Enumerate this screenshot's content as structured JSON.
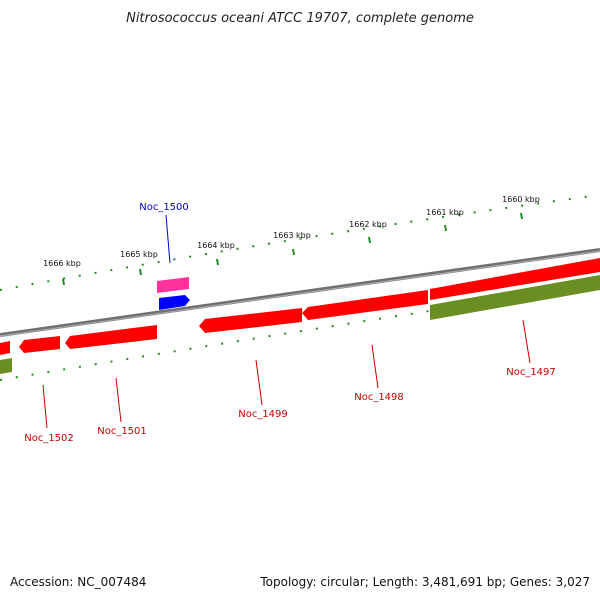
{
  "title": "Nitrosococcus oceani ATCC 19707, complete genome",
  "footer": {
    "accession": "Accession: NC_007484",
    "summary": "Topology: circular; Length: 3,481,691 bp; Genes: 3,027"
  },
  "kbp_labels": [
    "1666 kbp",
    "1665 kbp",
    "1664 kbp",
    "1663 kbp",
    "1662 kbp",
    "1661 kbp",
    "1660 kbp"
  ],
  "genes": [
    {
      "name": "Noc_1500",
      "strand": "forward",
      "color": "#0000cc"
    },
    {
      "name": "Noc_1502",
      "strand": "reverse",
      "color": "#cc0000"
    },
    {
      "name": "Noc_1501",
      "strand": "reverse",
      "color": "#cc0000"
    },
    {
      "name": "Noc_1499",
      "strand": "reverse",
      "color": "#cc0000"
    },
    {
      "name": "Noc_1498",
      "strand": "reverse",
      "color": "#cc0000"
    },
    {
      "name": "Noc_1497",
      "strand": "reverse",
      "color": "#cc0000"
    }
  ],
  "colors": {
    "backbone": "#808080",
    "cds_reverse": "#ff0000",
    "cds_forward": "#0000ff",
    "cds_pink": "#ff3399",
    "olive": "#6b8e23",
    "tick": "#228b22"
  }
}
